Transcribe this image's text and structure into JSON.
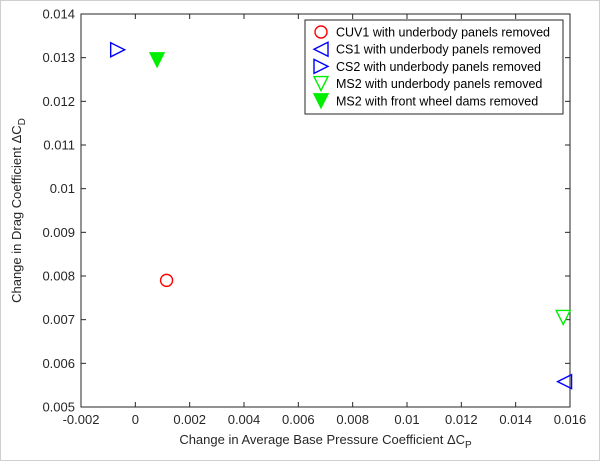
{
  "chart_data": {
    "type": "scatter",
    "xlabel": "Change in Average Base Pressure Coefficient ΔC",
    "xlabel_sub": "P",
    "ylabel": "Change in Drag Coefficient ΔC",
    "ylabel_sub": "D",
    "xlim": [
      -0.002,
      0.016
    ],
    "ylim": [
      0.005,
      0.014
    ],
    "x_ticks": [
      "-0.002",
      "0",
      "0.002",
      "0.004",
      "0.006",
      "0.008",
      "0.01",
      "0.012",
      "0.014",
      "0.016"
    ],
    "x_tick_values": [
      -0.002,
      0,
      0.002,
      0.004,
      0.006,
      0.008,
      0.01,
      0.012,
      0.014,
      0.016
    ],
    "y_ticks": [
      "0.005",
      "0.006",
      "0.007",
      "0.008",
      "0.009",
      "0.01",
      "0.011",
      "0.012",
      "0.013",
      "0.014"
    ],
    "y_tick_values": [
      0.005,
      0.006,
      0.007,
      0.008,
      0.009,
      0.01,
      0.011,
      0.012,
      0.013,
      0.014
    ],
    "grid": false,
    "legend_position": "top-right",
    "series": [
      {
        "name": "CUV1 with underbody panels removed",
        "marker": "circle-open",
        "color": "#ff0000",
        "points": [
          [
            0.00115,
            0.0079
          ]
        ]
      },
      {
        "name": "CS1 with underbody panels removed",
        "marker": "triangle-left-open",
        "color": "#0000ff",
        "points": [
          [
            0.0158,
            0.00558
          ]
        ]
      },
      {
        "name": "CS2 with underbody panels removed",
        "marker": "triangle-right-open",
        "color": "#0000ff",
        "points": [
          [
            -0.00065,
            0.01318
          ]
        ]
      },
      {
        "name": "MS2 with underbody panels removed",
        "marker": "triangle-down-open",
        "color": "#00ee00",
        "points": [
          [
            0.01575,
            0.00705
          ]
        ]
      },
      {
        "name": "MS2 with front wheel dams removed",
        "marker": "triangle-down-filled",
        "color": "#00ee00",
        "points": [
          [
            0.0008,
            0.01295
          ]
        ]
      }
    ]
  }
}
